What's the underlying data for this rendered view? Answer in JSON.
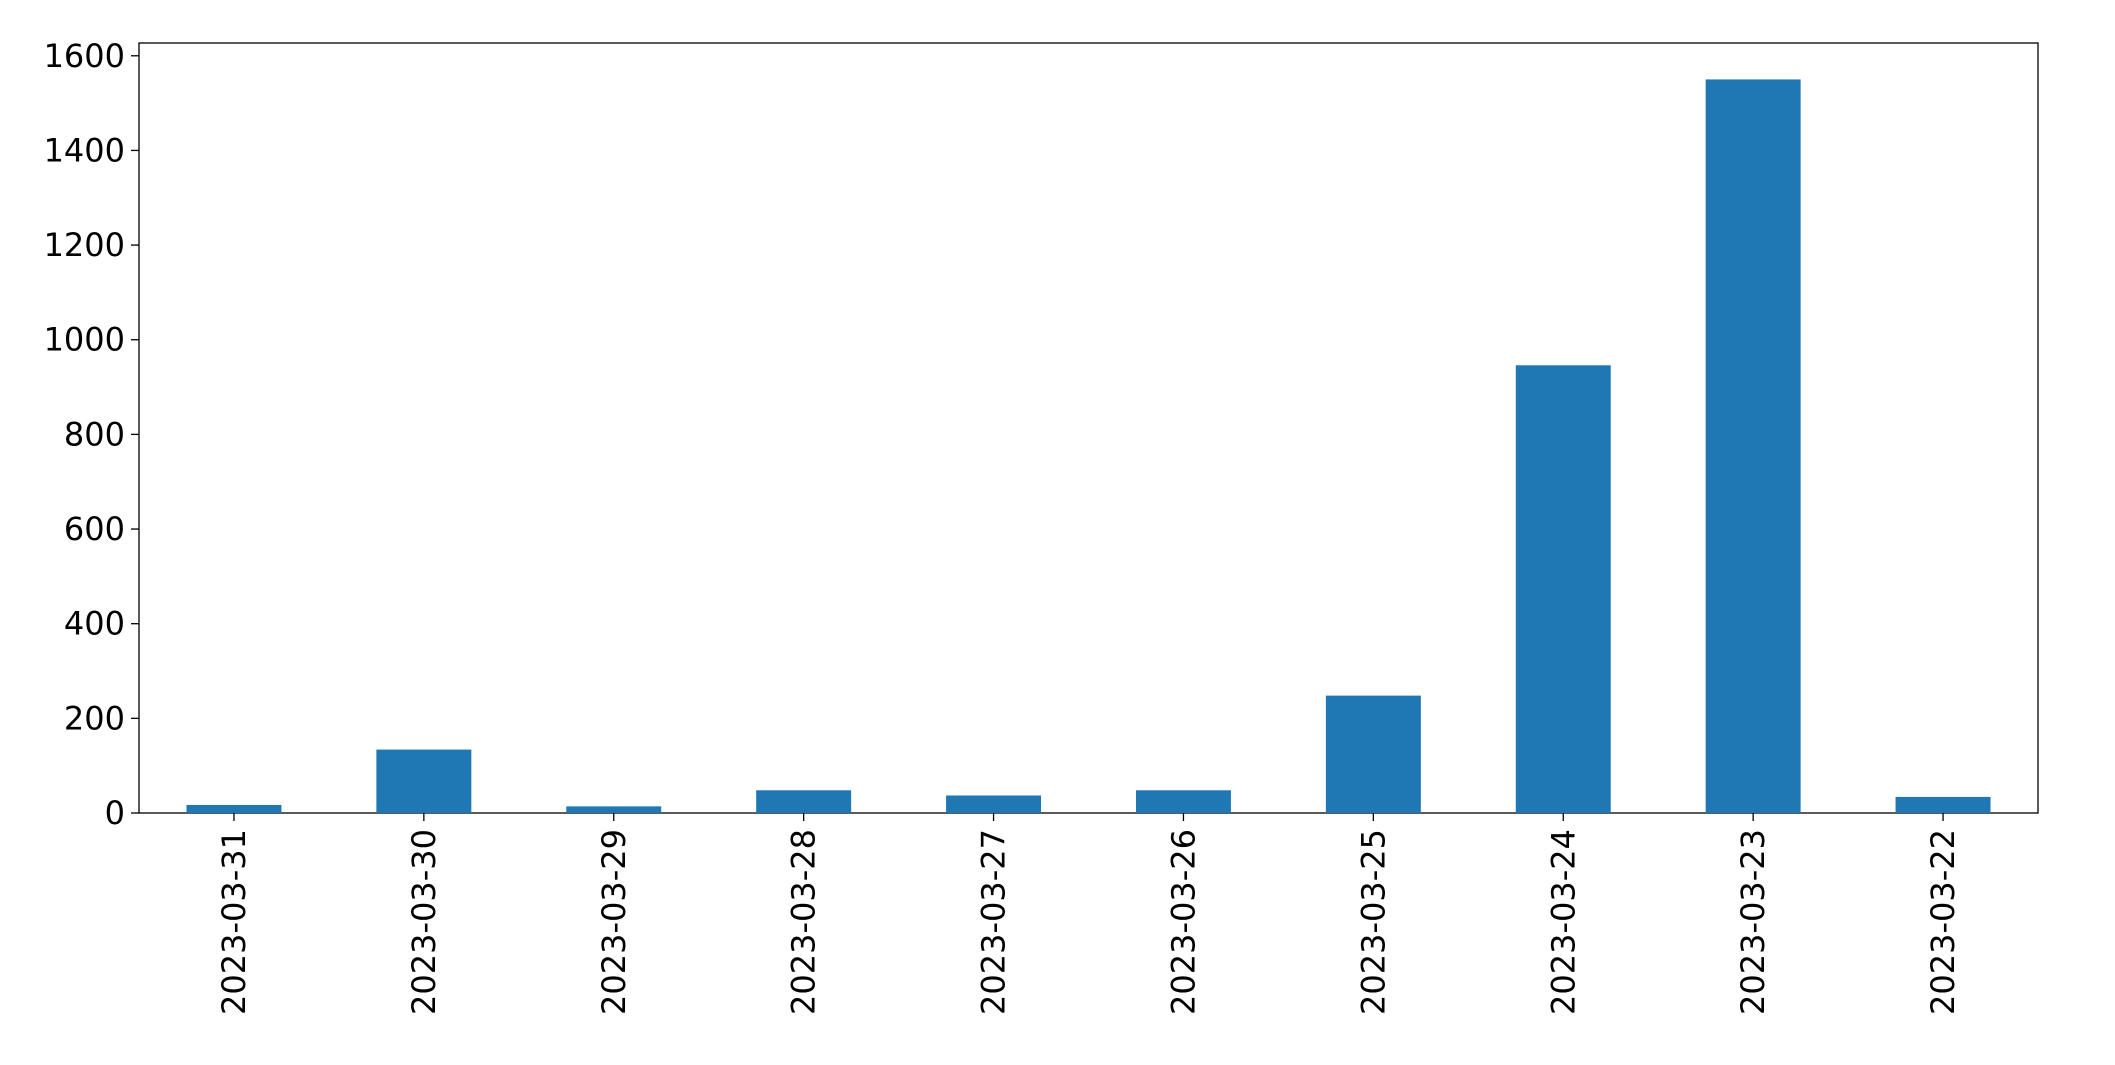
{
  "chart_data": {
    "type": "bar",
    "categories": [
      "2023-03-31",
      "2023-03-30",
      "2023-03-29",
      "2023-03-28",
      "2023-03-27",
      "2023-03-26",
      "2023-03-25",
      "2023-03-24",
      "2023-03-23",
      "2023-03-22"
    ],
    "values": [
      17,
      134,
      14,
      48,
      37,
      48,
      248,
      946,
      1550,
      34
    ],
    "color": "#1f77b4",
    "ylim": [
      0,
      1627
    ],
    "yticks": [
      0,
      200,
      400,
      600,
      800,
      1000,
      1200,
      1400,
      1600
    ],
    "grid": false
  }
}
